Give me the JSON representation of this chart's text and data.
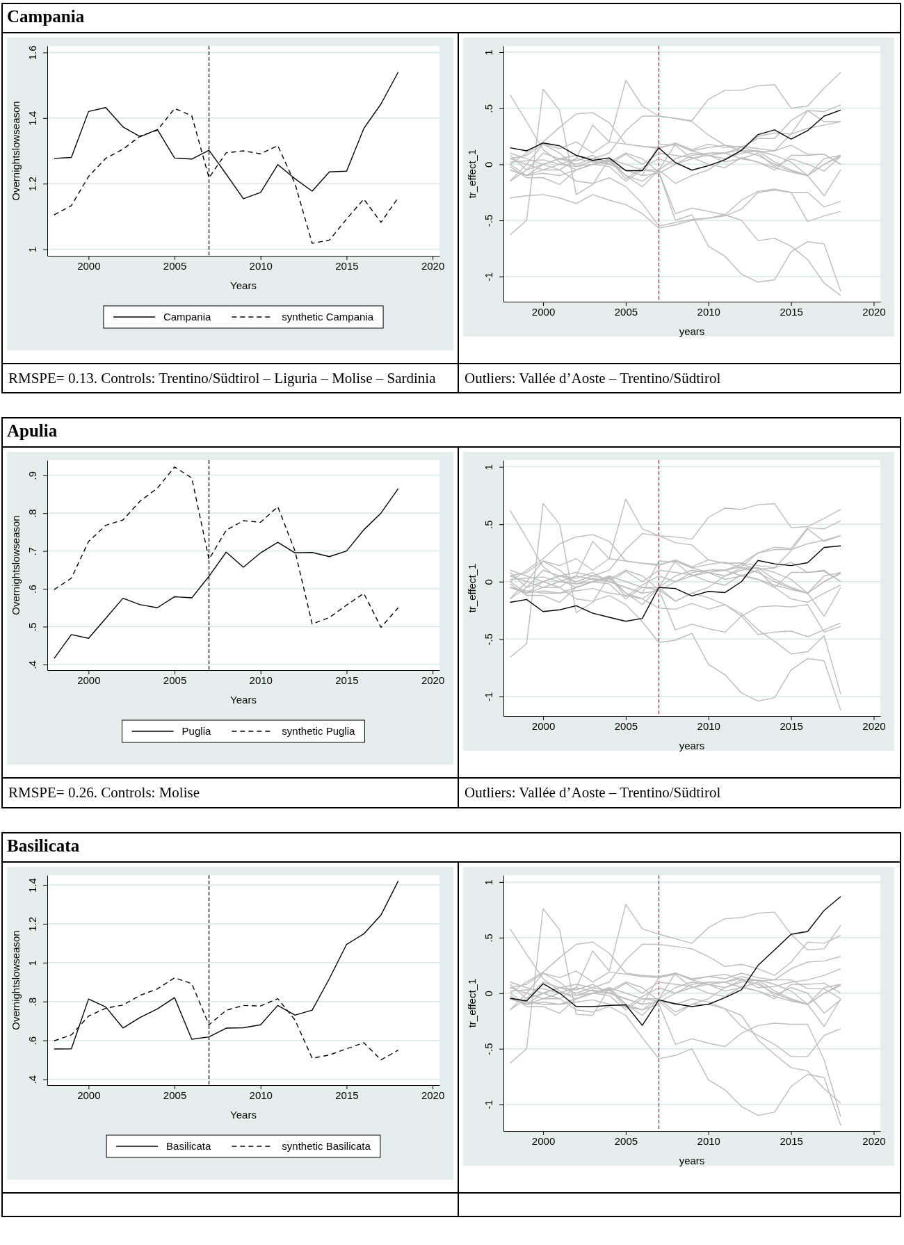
{
  "chart_data": [
    {
      "type": "line",
      "title": "Campania",
      "xlabel": "Years",
      "ylabel": "Overnightslowseason",
      "x": [
        1998,
        1999,
        2000,
        2001,
        2002,
        2003,
        2004,
        2005,
        2006,
        2007,
        2008,
        2009,
        2010,
        2011,
        2012,
        2013,
        2014,
        2015,
        2016,
        2017,
        2018
      ],
      "xlim": [
        1997.6,
        2020.4
      ],
      "xticks": [
        2000,
        2005,
        2010,
        2015,
        2020
      ],
      "ylim": [
        0.98,
        1.62
      ],
      "yticks": [
        1,
        1.2,
        1.4,
        1.6
      ],
      "grid": "y",
      "legend": "bottom",
      "ref_lines": [
        {
          "axis": "x",
          "value": 2007,
          "color": "#000000",
          "line_style": "dashed"
        }
      ],
      "annotations": [
        "RMSPE= 0.13. Controls: Trentino/Südtirol – Liguria – Molise – Sardinia"
      ],
      "series": [
        {
          "name": "Campania",
          "color": "#000000",
          "line_style": "solid",
          "values": [
            1.277,
            1.28,
            1.42,
            1.432,
            1.373,
            1.343,
            1.365,
            1.278,
            1.275,
            1.302,
            1.229,
            1.154,
            1.173,
            1.258,
            1.215,
            1.177,
            1.236,
            1.238,
            1.368,
            1.443,
            1.54
          ]
        },
        {
          "name": "synthetic Campania",
          "color": "#000000",
          "line_style": "dashed",
          "values": [
            1.105,
            1.133,
            1.222,
            1.277,
            1.305,
            1.345,
            1.363,
            1.429,
            1.407,
            1.218,
            1.294,
            1.3,
            1.291,
            1.316,
            1.2,
            1.018,
            1.028,
            1.092,
            1.153,
            1.082,
            1.157
          ]
        }
      ]
    },
    {
      "type": "line",
      "xlabel": "years",
      "ylabel": "tr_effect_1",
      "x": [
        1998,
        1999,
        2000,
        2001,
        2002,
        2003,
        2004,
        2005,
        2006,
        2007,
        2008,
        2009,
        2010,
        2011,
        2012,
        2013,
        2014,
        2015,
        2016,
        2017,
        2018
      ],
      "xlim": [
        1997.6,
        2020.4
      ],
      "xticks": [
        2000,
        2005,
        2010,
        2015,
        2020
      ],
      "ylim": [
        -1.225,
        1.056
      ],
      "yticks": [
        {
          "value": -1,
          "label": "-1"
        },
        {
          "value": -0.5,
          "label": "-.5"
        },
        0,
        {
          "value": 0.5,
          "label": ".5"
        },
        1
      ],
      "grid": "y",
      "ref_lines": [
        {
          "axis": "x",
          "value": 2007,
          "color": "#d01040",
          "line_style": "dashed"
        }
      ],
      "annotations": [
        "Outliers: Vallée d’Aoste – Trentino/Südtirol"
      ],
      "series": [
        {
          "color": "#bdbdbd",
          "values": [
            0.62,
            0.38,
            0.13,
            0.02,
            -0.05,
            0,
            0.03,
            -0.1,
            -0.15,
            -0.05,
            0.05,
            0.1,
            0.08,
            0.05,
            0.1,
            0.12,
            0.02,
            -0.05,
            -0.1,
            0,
            0.08
          ]
        },
        {
          "color": "#bdbdbd",
          "values": [
            -0.63,
            -0.5,
            0.67,
            0.48,
            -0.27,
            -0.18,
            0.05,
            0,
            -0.05,
            -0.05,
            0.18,
            0.12,
            0.08,
            0.02,
            0.05,
            0.02,
            -0.03,
            -0.07,
            -0.1,
            -0.28,
            -0.05
          ]
        },
        {
          "color": "#bdbdbd",
          "values": [
            -0.15,
            -0.05,
            0,
            -0.05,
            0.05,
            0.35,
            0.2,
            0.75,
            0.52,
            0.43,
            0.41,
            0.39,
            0.58,
            0.66,
            0.66,
            0.7,
            0.71,
            0.5,
            0.52,
            0.68,
            0.82
          ]
        },
        {
          "color": "#bdbdbd",
          "values": [
            0,
            0.1,
            0.2,
            0.33,
            0.45,
            0.46,
            0.37,
            0.18,
            0.16,
            0.15,
            0.18,
            0.12,
            0.15,
            0.17,
            0.12,
            0.12,
            0.08,
            0.02,
            -0.1,
            0.05,
            0.08
          ]
        },
        {
          "color": "#bdbdbd",
          "values": [
            -0.05,
            -0.1,
            0,
            0.05,
            0,
            0.05,
            0.1,
            0.3,
            0.43,
            0.43,
            0.41,
            0.38,
            0.26,
            0.17,
            0.15,
            0.23,
            0.23,
            0.39,
            0.48,
            0.47,
            0.53
          ]
        },
        {
          "color": "#bdbdbd",
          "values": [
            0.05,
            0,
            -0.05,
            -0.05,
            -0.15,
            -0.17,
            -0.12,
            -0.2,
            -0.35,
            -0.55,
            -0.52,
            -0.49,
            -0.48,
            -0.46,
            -0.4,
            -0.25,
            -0.23,
            -0.25,
            -0.25,
            -0.38,
            -0.33
          ]
        },
        {
          "color": "#bdbdbd",
          "values": [
            -0.3,
            -0.28,
            -0.27,
            -0.3,
            -0.35,
            -0.27,
            -0.32,
            -0.36,
            -0.44,
            -0.57,
            -0.54,
            -0.5,
            -0.48,
            -0.45,
            -0.32,
            -0.24,
            -0.22,
            -0.25,
            -0.51,
            -0.46,
            -0.42
          ]
        },
        {
          "color": "#bdbdbd",
          "values": [
            0.08,
            -0.05,
            0.1,
            0.05,
            0.08,
            0.05,
            0.02,
            0.1,
            0.05,
            -0.07,
            -0.44,
            -0.39,
            -0.42,
            -0.45,
            -0.5,
            -0.68,
            -0.66,
            -0.73,
            -0.85,
            -1.06,
            -1.17
          ]
        },
        {
          "color": "#bdbdbd",
          "values": [
            -0.05,
            -0.1,
            -0.05,
            0,
            -0.02,
            0,
            -0.02,
            -0.15,
            -0.05,
            -0.07,
            -0.5,
            -0.45,
            -0.73,
            -0.82,
            -0.98,
            -1.05,
            -1.03,
            -0.78,
            -0.69,
            -0.71,
            -1.13
          ]
        },
        {
          "color": "#bdbdbd",
          "values": [
            0.05,
            0.08,
            0.18,
            0.14,
            0.2,
            0.1,
            0.2,
            0.18,
            0.16,
            0.14,
            0.19,
            0.13,
            0.18,
            0.15,
            0.16,
            0.14,
            0.12,
            0.17,
            0.09,
            0.09,
            0
          ]
        },
        {
          "color": "#bdbdbd",
          "values": [
            0,
            -0.1,
            -0.08,
            -0.1,
            -0.05,
            0,
            0.05,
            -0.1,
            -0.2,
            -0.05,
            -0.17,
            -0.1,
            -0.05,
            0.05,
            0.12,
            0.08,
            0,
            -0.06,
            -0.1,
            0,
            0.07
          ]
        },
        {
          "color": "#bdbdbd",
          "values": [
            0.1,
            0.05,
            0,
            0.05,
            0.03,
            0.08,
            0,
            0.09,
            0,
            0.1,
            0.08,
            0.06,
            0,
            -0.03,
            0.06,
            0.02,
            -0.05,
            0.08,
            0.08,
            0.09,
            0
          ]
        },
        {
          "color": "#bdbdbd",
          "values": [
            -0.15,
            0,
            0.18,
            0.1,
            -0.02,
            0.03,
            0,
            -0.05,
            -0.1,
            0.18,
            0.17,
            0.05,
            0.1,
            0.1,
            0.15,
            0.11,
            0.12,
            0.27,
            0.48,
            0.38,
            0.38
          ]
        },
        {
          "color": "#bdbdbd",
          "values": [
            -0.02,
            -0.12,
            -0.12,
            -0.18,
            -0.05,
            0,
            0.04,
            -0.13,
            -0.03,
            0.05,
            0,
            0.08,
            0.1,
            0.1,
            0.13,
            0.25,
            0.28,
            0.27,
            0.32,
            0.35,
            0.38
          ]
        },
        {
          "color": "#bdbdbd",
          "values": [
            0.02,
            0.03,
            0.04,
            0,
            0.05,
            0.02,
            0,
            -0.05,
            -0.1,
            -0.08,
            0,
            0.05,
            0.08,
            0.1,
            0.05,
            0.1,
            -0.02,
            0.05,
            0,
            -0.06,
            0.07
          ]
        },
        {
          "color": "#000000",
          "values": [
            0.147,
            0.12,
            0.19,
            0.165,
            0.08,
            0.035,
            0.057,
            -0.057,
            -0.057,
            0.147,
            0.015,
            -0.052,
            -0.012,
            0.04,
            0.125,
            0.265,
            0.307,
            0.225,
            0.3,
            0.43,
            0.483
          ]
        }
      ]
    },
    {
      "type": "line",
      "title": "Apulia",
      "xlabel": "Years",
      "ylabel": "Overnightslowseason",
      "x": [
        1998,
        1999,
        2000,
        2001,
        2002,
        2003,
        2004,
        2005,
        2006,
        2007,
        2008,
        2009,
        2010,
        2011,
        2012,
        2013,
        2014,
        2015,
        2016,
        2017,
        2018
      ],
      "xlim": [
        1997.6,
        2020.4
      ],
      "xticks": [
        2000,
        2005,
        2010,
        2015,
        2020
      ],
      "ylim": [
        0.385,
        0.94
      ],
      "yticks": [
        {
          "value": 0.4,
          "label": ".4"
        },
        {
          "value": 0.5,
          "label": ".5"
        },
        {
          "value": 0.6,
          "label": ".6"
        },
        {
          "value": 0.7,
          "label": ".7"
        },
        {
          "value": 0.8,
          "label": ".8"
        },
        {
          "value": 0.9,
          "label": ".9"
        }
      ],
      "grid": "y",
      "legend": "bottom",
      "ref_lines": [
        {
          "axis": "x",
          "value": 2007,
          "color": "#000000",
          "line_style": "dashed"
        }
      ],
      "annotations": [
        "RMSPE= 0.26. Controls: Molise"
      ],
      "series": [
        {
          "name": "Puglia",
          "color": "#000000",
          "line_style": "solid",
          "values": [
            0.416,
            0.479,
            0.469,
            0.522,
            0.575,
            0.558,
            0.55,
            0.579,
            0.576,
            0.633,
            0.697,
            0.657,
            0.695,
            0.723,
            0.695,
            0.696,
            0.685,
            0.7,
            0.756,
            0.8,
            0.865
          ]
        },
        {
          "name": "synthetic Puglia",
          "color": "#000000",
          "line_style": "dashed",
          "values": [
            0.598,
            0.628,
            0.725,
            0.768,
            0.782,
            0.832,
            0.866,
            0.922,
            0.893,
            0.678,
            0.755,
            0.78,
            0.776,
            0.817,
            0.7,
            0.507,
            0.524,
            0.557,
            0.588,
            0.498,
            0.55
          ]
        }
      ]
    },
    {
      "type": "line",
      "xlabel": "years",
      "ylabel": "tr_effect_1",
      "x": [
        1998,
        1999,
        2000,
        2001,
        2002,
        2003,
        2004,
        2005,
        2006,
        2007,
        2008,
        2009,
        2010,
        2011,
        2012,
        2013,
        2014,
        2015,
        2016,
        2017,
        2018
      ],
      "xlim": [
        1997.6,
        2020.4
      ],
      "xticks": [
        2000,
        2005,
        2010,
        2015,
        2020
      ],
      "ylim": [
        -1.17,
        1.058
      ],
      "yticks": [
        {
          "value": -1,
          "label": "-1"
        },
        {
          "value": -0.5,
          "label": "-.5"
        },
        0,
        {
          "value": 0.5,
          "label": ".5"
        },
        1
      ],
      "grid": "y",
      "ref_lines": [
        {
          "axis": "x",
          "value": 2007,
          "color": "#d01040",
          "line_style": "dashed"
        }
      ],
      "annotations": [
        "Outliers: Vallée d’Aoste – Trentino/Südtirol"
      ],
      "series": [
        {
          "color": "#bdbdbd",
          "values": [
            0.62,
            0.38,
            0.13,
            0.02,
            -0.05,
            0,
            0.03,
            -0.1,
            -0.15,
            -0.05,
            0.05,
            0.1,
            0.08,
            0.05,
            0.1,
            0.12,
            0.02,
            -0.05,
            -0.1,
            0,
            0.08
          ]
        },
        {
          "color": "#bdbdbd",
          "values": [
            -0.66,
            -0.54,
            0.68,
            0.5,
            -0.27,
            -0.18,
            0.05,
            0,
            -0.05,
            -0.05,
            0.18,
            0.12,
            0.08,
            0.02,
            0.05,
            0.02,
            -0.03,
            -0.07,
            -0.1,
            -0.3,
            -0.05
          ]
        },
        {
          "color": "#bdbdbd",
          "values": [
            -0.15,
            -0.05,
            0,
            -0.05,
            0.05,
            0.35,
            0.2,
            0.72,
            0.46,
            0.4,
            0.39,
            0.37,
            0.56,
            0.64,
            0.63,
            0.67,
            0.68,
            0.47,
            0.48,
            0.55,
            0.63
          ]
        },
        {
          "color": "#bdbdbd",
          "values": [
            0,
            0.1,
            0.2,
            0.33,
            0.39,
            0.41,
            0.35,
            0.18,
            0.16,
            0.15,
            0.18,
            0.12,
            0.15,
            0.17,
            0.12,
            0.12,
            0.08,
            0.02,
            -0.1,
            0.05,
            0.08
          ]
        },
        {
          "color": "#bdbdbd",
          "values": [
            -0.05,
            -0.1,
            0,
            0.05,
            0,
            0.05,
            0.1,
            0.28,
            0.42,
            0.4,
            0.34,
            0.32,
            0.19,
            0.16,
            0.16,
            0.25,
            0.3,
            0.29,
            0.47,
            0.46,
            0.53
          ]
        },
        {
          "color": "#bdbdbd",
          "values": [
            0.05,
            0,
            -0.05,
            -0.05,
            -0.15,
            -0.17,
            -0.12,
            -0.2,
            -0.35,
            -0.53,
            -0.51,
            -0.45,
            -0.72,
            -0.81,
            -0.97,
            -1.04,
            -1.01,
            -0.77,
            -0.67,
            -0.69,
            -1.12
          ]
        },
        {
          "color": "#bdbdbd",
          "values": [
            -0.05,
            -0.08,
            -0.1,
            -0.1,
            -0.08,
            -0.06,
            -0.1,
            -0.12,
            -0.15,
            -0.23,
            -0.24,
            -0.19,
            -0.24,
            -0.2,
            -0.3,
            -0.22,
            -0.21,
            -0.22,
            -0.2,
            -0.44,
            -0.39
          ]
        },
        {
          "color": "#bdbdbd",
          "values": [
            0.08,
            -0.05,
            0.1,
            0.05,
            0.08,
            0.05,
            0.02,
            0.1,
            0.05,
            -0.07,
            -0.42,
            -0.37,
            -0.41,
            -0.44,
            -0.3,
            -0.46,
            -0.44,
            -0.43,
            -0.48,
            -0.42,
            -0.36
          ]
        },
        {
          "color": "#bdbdbd",
          "values": [
            -0.05,
            -0.1,
            -0.05,
            0,
            -0.02,
            0,
            -0.02,
            -0.15,
            -0.05,
            -0.07,
            -0.17,
            -0.1,
            -0.14,
            -0.2,
            -0.28,
            -0.42,
            -0.52,
            -0.63,
            -0.61,
            -0.47,
            -0.98
          ]
        },
        {
          "color": "#bdbdbd",
          "values": [
            0.05,
            0.08,
            0.18,
            0.14,
            0.2,
            0.1,
            0.2,
            0.18,
            0.16,
            0.14,
            0.19,
            0.13,
            0.19,
            0.16,
            0.16,
            0.14,
            0.12,
            0.17,
            0.08,
            0.1,
            0
          ]
        },
        {
          "color": "#bdbdbd",
          "values": [
            0,
            -0.1,
            -0.08,
            -0.1,
            -0.05,
            0,
            0.05,
            -0.1,
            -0.2,
            -0.05,
            -0.17,
            -0.1,
            -0.05,
            0.05,
            0.12,
            0.08,
            0,
            -0.06,
            -0.1,
            0,
            0.07
          ]
        },
        {
          "color": "#bdbdbd",
          "values": [
            0.1,
            0.05,
            0,
            0.05,
            0.03,
            0.08,
            0,
            0.09,
            0,
            0.1,
            0.08,
            0.06,
            0,
            -0.03,
            0.06,
            0.02,
            -0.05,
            0.08,
            0.08,
            0.09,
            0
          ]
        },
        {
          "color": "#bdbdbd",
          "values": [
            -0.15,
            0,
            0.18,
            0.1,
            -0.02,
            0.03,
            0,
            -0.05,
            -0.1,
            0.18,
            0.17,
            0.05,
            0.1,
            0.1,
            0.15,
            0.11,
            0.12,
            0.27,
            0.46,
            0.35,
            0.4
          ]
        },
        {
          "color": "#bdbdbd",
          "values": [
            -0.02,
            -0.12,
            -0.12,
            -0.18,
            -0.05,
            0,
            0.04,
            -0.13,
            -0.03,
            0.05,
            0,
            0.08,
            0.1,
            0.1,
            0.13,
            0.25,
            0.28,
            0.28,
            0.33,
            0.36,
            0.4
          ]
        },
        {
          "color": "#bdbdbd",
          "values": [
            0.02,
            0.03,
            0.04,
            0,
            0.05,
            0.02,
            0,
            -0.05,
            -0.1,
            -0.08,
            0,
            0.05,
            0.08,
            0.1,
            0.05,
            0.1,
            -0.05,
            -0.15,
            -0.18,
            -0.1,
            -0.03
          ]
        },
        {
          "color": "#000000",
          "values": [
            -0.18,
            -0.155,
            -0.26,
            -0.245,
            -0.21,
            -0.275,
            -0.31,
            -0.345,
            -0.32,
            -0.05,
            -0.06,
            -0.125,
            -0.085,
            -0.095,
            0,
            0.185,
            0.155,
            0.14,
            0.165,
            0.298,
            0.312
          ]
        }
      ]
    },
    {
      "type": "line",
      "title": "Basilicata",
      "xlabel": "Years",
      "ylabel": "Overnightslowseason",
      "x": [
        1998,
        1999,
        2000,
        2001,
        2002,
        2003,
        2004,
        2005,
        2006,
        2007,
        2008,
        2009,
        2010,
        2011,
        2012,
        2013,
        2014,
        2015,
        2016,
        2017,
        2018
      ],
      "xlim": [
        1997.6,
        2020.4
      ],
      "xticks": [
        2000,
        2005,
        2010,
        2015,
        2020
      ],
      "ylim": [
        0.37,
        1.45
      ],
      "yticks": [
        {
          "value": 0.4,
          "label": ".4"
        },
        {
          "value": 0.6,
          "label": ".6"
        },
        {
          "value": 0.8,
          "label": ".8"
        },
        1,
        1.2,
        1.4
      ],
      "grid": "y",
      "legend": "bottom",
      "ref_lines": [
        {
          "axis": "x",
          "value": 2007,
          "color": "#000000",
          "line_style": "dashed"
        }
      ],
      "series": [
        {
          "name": "Basilicata",
          "color": "#000000",
          "line_style": "solid",
          "values": [
            0.556,
            0.557,
            0.813,
            0.772,
            0.664,
            0.718,
            0.762,
            0.82,
            0.606,
            0.618,
            0.663,
            0.665,
            0.68,
            0.78,
            0.73,
            0.756,
            0.918,
            1.094,
            1.148,
            1.245,
            1.42
          ]
        },
        {
          "name": "synthetic Basilicata",
          "color": "#000000",
          "line_style": "dashed",
          "values": [
            0.598,
            0.628,
            0.725,
            0.766,
            0.782,
            0.832,
            0.865,
            0.922,
            0.892,
            0.68,
            0.755,
            0.78,
            0.777,
            0.815,
            0.705,
            0.508,
            0.525,
            0.557,
            0.588,
            0.5,
            0.55
          ]
        }
      ]
    },
    {
      "type": "line",
      "xlabel": "years",
      "ylabel": "tr_effect_1",
      "x": [
        1998,
        1999,
        2000,
        2001,
        2002,
        2003,
        2004,
        2005,
        2006,
        2007,
        2008,
        2009,
        2010,
        2011,
        2012,
        2013,
        2014,
        2015,
        2016,
        2017,
        2018
      ],
      "xlim": [
        1997.6,
        2020.4
      ],
      "xticks": [
        2000,
        2005,
        2010,
        2015,
        2020
      ],
      "ylim": [
        -1.24,
        1.062
      ],
      "yticks": [
        {
          "value": -1,
          "label": "-1"
        },
        {
          "value": -0.5,
          "label": "-.5"
        },
        0,
        {
          "value": 0.5,
          "label": ".5"
        },
        1
      ],
      "grid": "y",
      "ref_lines": [
        {
          "axis": "x",
          "value": 2007,
          "color": "#c0204a",
          "line_style": "dashed"
        }
      ],
      "series": [
        {
          "color": "#bdbdbd",
          "values": [
            0.58,
            0.35,
            0.13,
            0.02,
            -0.05,
            0,
            0.03,
            -0.1,
            -0.15,
            -0.05,
            0.05,
            0.1,
            0.08,
            0.05,
            0.1,
            0.12,
            0.02,
            -0.05,
            -0.1,
            0,
            0.08
          ]
        },
        {
          "color": "#bdbdbd",
          "values": [
            -0.63,
            -0.5,
            0.76,
            0.57,
            -0.19,
            -0.2,
            0.05,
            0,
            -0.05,
            -0.05,
            0.18,
            0.12,
            0.08,
            0.02,
            0.05,
            0.02,
            -0.03,
            -0.07,
            -0.1,
            -0.3,
            -0.05
          ]
        },
        {
          "color": "#bdbdbd",
          "values": [
            -0.15,
            -0.05,
            0,
            -0.05,
            0.05,
            0.38,
            0.2,
            0.8,
            0.58,
            0.53,
            0.49,
            0.45,
            0.59,
            0.67,
            0.68,
            0.72,
            0.73,
            0.53,
            0.39,
            0.4,
            0.61
          ]
        },
        {
          "color": "#bdbdbd",
          "values": [
            0,
            0.1,
            0.19,
            0.32,
            0.44,
            0.46,
            0.36,
            0.18,
            0.16,
            0.15,
            0.18,
            0.12,
            0.15,
            0.17,
            0.12,
            0.12,
            0.08,
            0.02,
            -0.1,
            0.05,
            0.08
          ]
        },
        {
          "color": "#bdbdbd",
          "values": [
            -0.05,
            -0.1,
            0,
            0.05,
            0,
            0.05,
            0.1,
            0.3,
            0.44,
            0.44,
            0.42,
            0.4,
            0.33,
            0.24,
            0.26,
            0.22,
            0.16,
            0.28,
            0.46,
            0.45,
            0.52
          ]
        },
        {
          "color": "#bdbdbd",
          "values": [
            0.05,
            0,
            -0.05,
            -0.05,
            -0.15,
            -0.17,
            -0.12,
            -0.2,
            -0.4,
            -0.59,
            -0.56,
            -0.5,
            -0.78,
            -0.87,
            -1.02,
            -1.1,
            -1.07,
            -0.84,
            -0.73,
            -0.76,
            -1.19
          ]
        },
        {
          "color": "#bdbdbd",
          "values": [
            -0.05,
            -0.08,
            -0.1,
            -0.1,
            -0.08,
            -0.06,
            -0.1,
            -0.12,
            -0.15,
            -0.1,
            -0.46,
            -0.41,
            -0.45,
            -0.48,
            -0.36,
            -0.29,
            -0.27,
            -0.28,
            -0.28,
            -0.6,
            -1.11
          ]
        },
        {
          "color": "#bdbdbd",
          "values": [
            0.08,
            -0.05,
            0.1,
            0.05,
            0.08,
            0.05,
            0.02,
            0.1,
            0.05,
            -0.07,
            -0.1,
            -0.05,
            -0.08,
            -0.14,
            -0.2,
            -0.42,
            -0.55,
            -0.67,
            -0.7,
            -0.86,
            -0.99
          ]
        },
        {
          "color": "#bdbdbd",
          "values": [
            -0.05,
            -0.1,
            -0.05,
            0,
            -0.02,
            0,
            -0.02,
            -0.15,
            -0.05,
            -0.07,
            -0.2,
            -0.1,
            -0.1,
            -0.14,
            -0.3,
            -0.38,
            -0.46,
            -0.57,
            -0.57,
            -0.38,
            -0.32
          ]
        },
        {
          "color": "#bdbdbd",
          "values": [
            0.05,
            0.08,
            0.18,
            0.14,
            0.2,
            0.1,
            0.19,
            0.17,
            0.15,
            0.14,
            0.18,
            0.13,
            0.15,
            0.13,
            0.18,
            0.14,
            0.12,
            0.12,
            0.04,
            0.04,
            -0.05
          ]
        },
        {
          "color": "#bdbdbd",
          "values": [
            0,
            -0.1,
            -0.08,
            -0.1,
            -0.05,
            0,
            0.05,
            -0.1,
            -0.2,
            -0.05,
            -0.17,
            -0.1,
            -0.05,
            0.05,
            0.12,
            0.08,
            0,
            -0.06,
            -0.1,
            0,
            0.07
          ]
        },
        {
          "color": "#bdbdbd",
          "values": [
            0.1,
            0.05,
            0,
            0.05,
            0.03,
            0.08,
            0,
            0.09,
            0,
            0.1,
            0.08,
            0.06,
            0,
            -0.03,
            0.06,
            0.02,
            -0.05,
            0.08,
            0.08,
            0.09,
            0
          ]
        },
        {
          "color": "#bdbdbd",
          "values": [
            -0.15,
            0,
            0.18,
            0.1,
            -0.02,
            0.03,
            0,
            -0.05,
            -0.1,
            0.14,
            0.17,
            0.05,
            0.1,
            0.1,
            0.15,
            0.11,
            0.12,
            0.22,
            0.28,
            0.29,
            0.33
          ]
        },
        {
          "color": "#bdbdbd",
          "values": [
            -0.02,
            -0.12,
            -0.12,
            -0.18,
            -0.05,
            0,
            0.04,
            -0.13,
            -0.03,
            0.05,
            0,
            0.08,
            0.1,
            0.1,
            0.13,
            0.05,
            0.06,
            0.1,
            0.12,
            0.16,
            0.22
          ]
        },
        {
          "color": "#bdbdbd",
          "values": [
            0.02,
            0.03,
            0.04,
            0,
            0.05,
            0.02,
            0,
            -0.05,
            -0.1,
            -0.08,
            0,
            0.05,
            0.08,
            0.1,
            0.05,
            0.1,
            -0.02,
            0.05,
            0,
            -0.18,
            -0.06
          ]
        },
        {
          "color": "#000000",
          "values": [
            -0.045,
            -0.07,
            0.085,
            0,
            -0.12,
            -0.12,
            -0.11,
            -0.105,
            -0.29,
            -0.06,
            -0.095,
            -0.12,
            -0.1,
            -0.04,
            0.03,
            0.25,
            0.39,
            0.53,
            0.555,
            0.745,
            0.87
          ]
        }
      ]
    }
  ]
}
